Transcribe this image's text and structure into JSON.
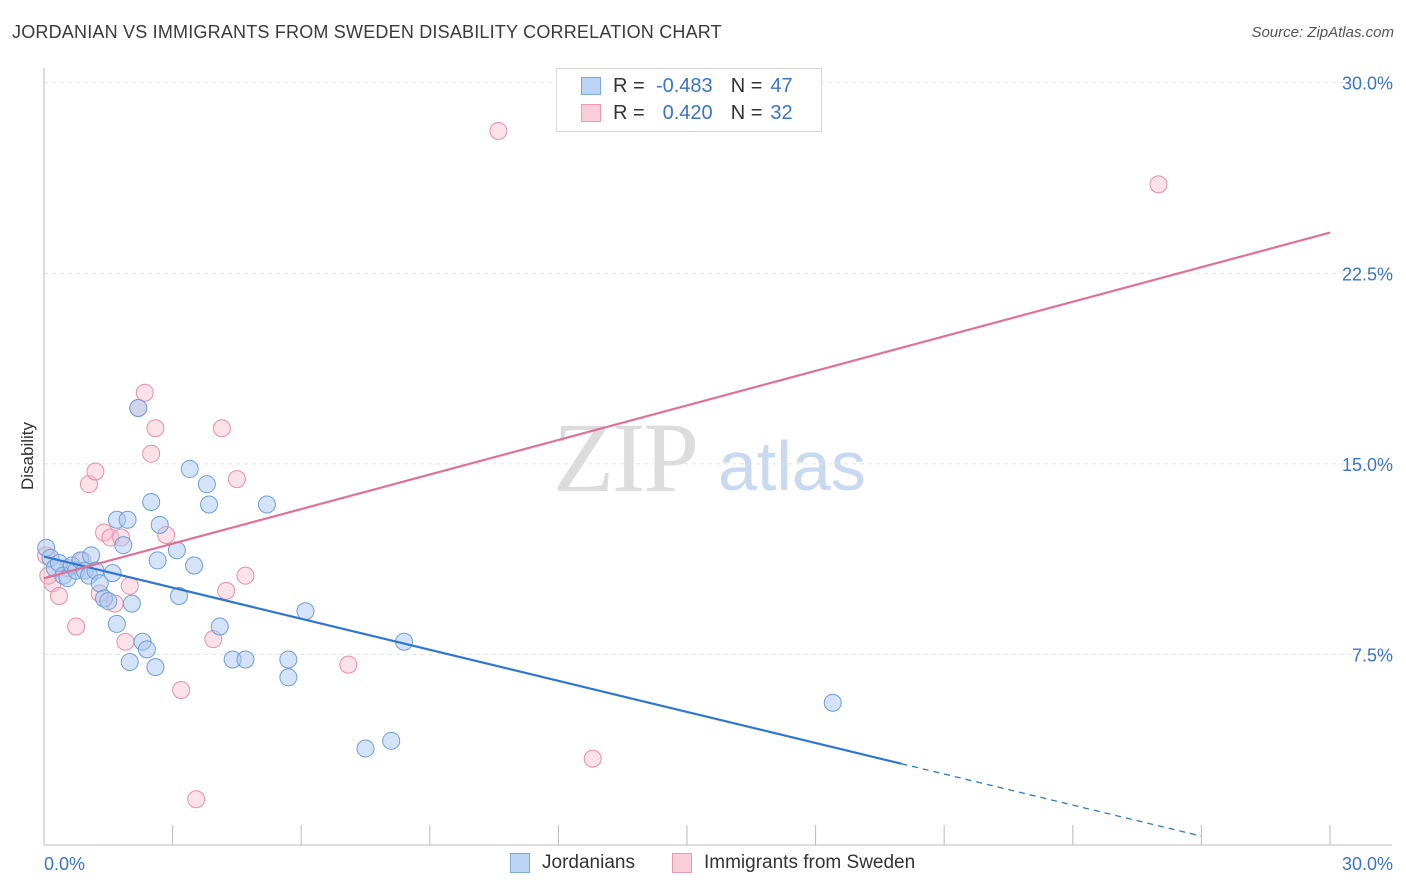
{
  "header": {
    "title": "JORDANIAN VS IMMIGRANTS FROM SWEDEN DISABILITY CORRELATION CHART",
    "source": "Source: ZipAtlas.com"
  },
  "watermark": {
    "zip": "ZIP",
    "atlas": "atlas"
  },
  "legend": {
    "r_label": "R =",
    "n_label": "N =",
    "rows": [
      {
        "r": "-0.483",
        "n": "47"
      },
      {
        "r": "0.420",
        "n": "32"
      }
    ]
  },
  "chart_data": {
    "type": "scatter",
    "title": "JORDANIAN VS IMMIGRANTS FROM SWEDEN DISABILITY CORRELATION CHART",
    "xlabel": "",
    "ylabel": "Disability",
    "xlim": [
      0,
      30
    ],
    "ylim": [
      0,
      30.5
    ],
    "x_tick_labels": [
      "0.0%",
      "30.0%"
    ],
    "y_ticks": [
      7.5,
      15.0,
      22.5,
      30.0
    ],
    "y_tick_labels": [
      "7.5%",
      "15.0%",
      "22.5%",
      "30.0%"
    ],
    "grid": true,
    "colors": {
      "jordanians_fill": "#a9c8f0",
      "jordanians_stroke": "#6f9ed8",
      "jordanians_line": "#2f76d2",
      "sweden_fill": "#f6bccd",
      "sweden_stroke": "#e58fab",
      "sweden_line": "#e0709a",
      "tick_label": "#3a74c8"
    },
    "series": [
      {
        "name": "Jordanians",
        "trend": {
          "x0": 0,
          "y0": 11.35,
          "x1": 20.0,
          "y1": 3.2,
          "dash_x_end": 27.0
        },
        "points": [
          [
            0.05,
            11.7
          ],
          [
            0.15,
            11.3
          ],
          [
            0.25,
            10.9
          ],
          [
            0.35,
            11.1
          ],
          [
            0.45,
            10.6
          ],
          [
            0.55,
            10.5
          ],
          [
            0.65,
            11.0
          ],
          [
            0.75,
            10.8
          ],
          [
            0.85,
            11.2
          ],
          [
            0.95,
            10.8
          ],
          [
            1.05,
            10.6
          ],
          [
            1.1,
            11.4
          ],
          [
            1.2,
            10.8
          ],
          [
            1.3,
            10.3
          ],
          [
            1.4,
            9.7
          ],
          [
            1.5,
            9.6
          ],
          [
            1.6,
            10.7
          ],
          [
            1.7,
            8.7
          ],
          [
            1.7,
            12.8
          ],
          [
            1.85,
            11.8
          ],
          [
            1.95,
            12.8
          ],
          [
            2.0,
            7.2
          ],
          [
            2.05,
            9.5
          ],
          [
            2.2,
            17.2
          ],
          [
            2.3,
            8.0
          ],
          [
            2.4,
            7.7
          ],
          [
            2.5,
            13.5
          ],
          [
            2.6,
            7.0
          ],
          [
            2.65,
            11.2
          ],
          [
            2.7,
            12.6
          ],
          [
            3.1,
            11.6
          ],
          [
            3.15,
            9.8
          ],
          [
            3.4,
            14.8
          ],
          [
            3.5,
            11.0
          ],
          [
            3.8,
            14.2
          ],
          [
            3.85,
            13.4
          ],
          [
            4.1,
            8.6
          ],
          [
            4.4,
            7.3
          ],
          [
            4.7,
            7.3
          ],
          [
            5.2,
            13.4
          ],
          [
            5.7,
            7.3
          ],
          [
            5.7,
            6.6
          ],
          [
            6.1,
            9.2
          ],
          [
            7.5,
            3.8
          ],
          [
            8.1,
            4.1
          ],
          [
            8.4,
            8.0
          ],
          [
            18.4,
            5.6
          ]
        ]
      },
      {
        "name": "Immigrants from Sweden",
        "trend": {
          "x0": 0,
          "y0": 10.5,
          "x1": 30.0,
          "y1": 24.1
        },
        "points": [
          [
            0.05,
            11.4
          ],
          [
            0.2,
            10.3
          ],
          [
            0.35,
            9.8
          ],
          [
            0.55,
            10.9
          ],
          [
            0.75,
            8.6
          ],
          [
            0.9,
            11.2
          ],
          [
            1.05,
            14.2
          ],
          [
            1.2,
            14.7
          ],
          [
            1.3,
            9.9
          ],
          [
            1.4,
            12.3
          ],
          [
            1.55,
            12.1
          ],
          [
            1.65,
            9.5
          ],
          [
            1.8,
            12.1
          ],
          [
            1.9,
            8.0
          ],
          [
            2.0,
            10.2
          ],
          [
            2.2,
            17.2
          ],
          [
            2.35,
            17.8
          ],
          [
            2.5,
            15.4
          ],
          [
            2.6,
            16.4
          ],
          [
            2.85,
            12.2
          ],
          [
            3.2,
            6.1
          ],
          [
            3.55,
            1.8
          ],
          [
            3.95,
            8.1
          ],
          [
            4.15,
            16.4
          ],
          [
            4.25,
            10.0
          ],
          [
            4.5,
            14.4
          ],
          [
            4.7,
            10.6
          ],
          [
            7.1,
            7.1
          ],
          [
            10.6,
            28.1
          ],
          [
            12.8,
            3.4
          ],
          [
            26.0,
            26.0
          ],
          [
            0.1,
            10.6
          ]
        ]
      }
    ]
  },
  "bottom_legend": {
    "items": [
      {
        "label": "Jordanians"
      },
      {
        "label": "Immigrants from Sweden"
      }
    ]
  }
}
